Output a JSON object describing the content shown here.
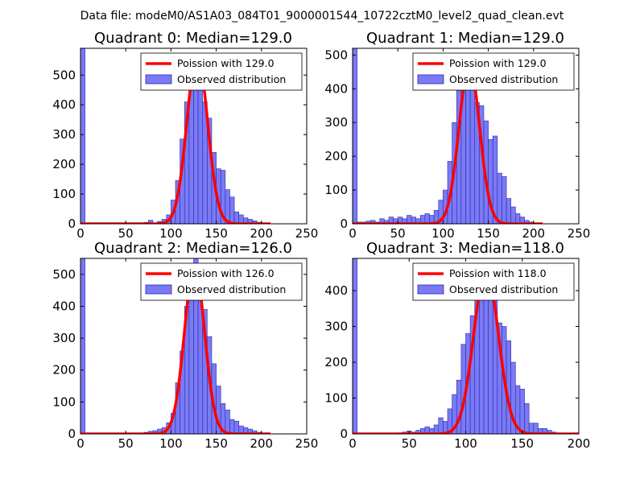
{
  "figure": {
    "suptitle": "Data file: modeM0/AS1A03_084T01_9000001544_10722cztM0_level2_quad_clean.evt"
  },
  "colors": {
    "hist_fill": "#7a7af5",
    "hist_edge": "#2a2ab0",
    "poisson_line": "#ff0000"
  },
  "chart_data": [
    {
      "type": "histogram",
      "title": "Quadrant 0: Median=129.0",
      "median": 129.0,
      "xlim": [
        0,
        250
      ],
      "ylim": [
        0,
        590
      ],
      "xticks": [
        0,
        50,
        100,
        150,
        200,
        250
      ],
      "yticks": [
        0,
        100,
        200,
        300,
        400,
        500
      ],
      "bin_width": 5,
      "bins": [
        [
          0,
          590
        ],
        [
          70,
          5
        ],
        [
          75,
          12
        ],
        [
          85,
          8
        ],
        [
          90,
          15
        ],
        [
          95,
          30
        ],
        [
          100,
          80
        ],
        [
          105,
          145
        ],
        [
          110,
          285
        ],
        [
          115,
          410
        ],
        [
          120,
          460
        ],
        [
          125,
          570
        ],
        [
          130,
          505
        ],
        [
          135,
          410
        ],
        [
          140,
          355
        ],
        [
          145,
          240
        ],
        [
          150,
          185
        ],
        [
          155,
          180
        ],
        [
          160,
          115
        ],
        [
          165,
          90
        ],
        [
          170,
          40
        ],
        [
          175,
          30
        ],
        [
          180,
          20
        ],
        [
          185,
          15
        ],
        [
          190,
          10
        ],
        [
          195,
          5
        ]
      ],
      "poisson_label": "Poission with 129.0",
      "observed_label": "Observed distribution",
      "poisson": {
        "mean": 129.0,
        "peak": 570,
        "sigma": 11.4
      }
    },
    {
      "type": "histogram",
      "title": "Quadrant 1: Median=129.0",
      "median": 129.0,
      "xlim": [
        0,
        250
      ],
      "ylim": [
        0,
        520
      ],
      "xticks": [
        0,
        50,
        100,
        150,
        200,
        250
      ],
      "yticks": [
        0,
        100,
        200,
        300,
        400,
        500
      ],
      "bin_width": 5,
      "bins": [
        [
          0,
          520
        ],
        [
          5,
          5
        ],
        [
          10,
          5
        ],
        [
          15,
          8
        ],
        [
          20,
          10
        ],
        [
          25,
          5
        ],
        [
          30,
          15
        ],
        [
          35,
          10
        ],
        [
          40,
          20
        ],
        [
          45,
          15
        ],
        [
          50,
          20
        ],
        [
          55,
          15
        ],
        [
          60,
          25
        ],
        [
          65,
          20
        ],
        [
          70,
          15
        ],
        [
          75,
          25
        ],
        [
          80,
          30
        ],
        [
          85,
          25
        ],
        [
          90,
          40
        ],
        [
          95,
          70
        ],
        [
          100,
          100
        ],
        [
          105,
          185
        ],
        [
          110,
          300
        ],
        [
          115,
          395
        ],
        [
          120,
          450
        ],
        [
          125,
          470
        ],
        [
          130,
          500
        ],
        [
          135,
          360
        ],
        [
          140,
          350
        ],
        [
          145,
          305
        ],
        [
          150,
          250
        ],
        [
          155,
          260
        ],
        [
          160,
          150
        ],
        [
          165,
          140
        ],
        [
          170,
          75
        ],
        [
          175,
          50
        ],
        [
          180,
          30
        ],
        [
          185,
          20
        ],
        [
          190,
          10
        ],
        [
          195,
          5
        ]
      ],
      "poisson_label": "Poission with 129.0",
      "observed_label": "Observed distribution",
      "poisson": {
        "mean": 129.0,
        "peak": 472,
        "sigma": 11.4
      }
    },
    {
      "type": "histogram",
      "title": "Quadrant 2: Median=126.0",
      "median": 126.0,
      "xlim": [
        0,
        250
      ],
      "ylim": [
        0,
        550
      ],
      "xticks": [
        0,
        50,
        100,
        150,
        200,
        250
      ],
      "yticks": [
        0,
        100,
        200,
        300,
        400,
        500
      ],
      "bin_width": 5,
      "bins": [
        [
          0,
          550
        ],
        [
          70,
          5
        ],
        [
          75,
          8
        ],
        [
          80,
          10
        ],
        [
          85,
          15
        ],
        [
          90,
          20
        ],
        [
          95,
          35
        ],
        [
          100,
          65
        ],
        [
          105,
          160
        ],
        [
          110,
          260
        ],
        [
          115,
          400
        ],
        [
          120,
          455
        ],
        [
          125,
          550
        ],
        [
          130,
          470
        ],
        [
          135,
          390
        ],
        [
          140,
          305
        ],
        [
          145,
          220
        ],
        [
          150,
          150
        ],
        [
          155,
          95
        ],
        [
          160,
          75
        ],
        [
          165,
          45
        ],
        [
          170,
          40
        ],
        [
          175,
          25
        ],
        [
          180,
          20
        ],
        [
          185,
          15
        ],
        [
          190,
          10
        ],
        [
          195,
          5
        ],
        [
          200,
          3
        ]
      ],
      "poisson_label": "Poission with 126.0",
      "observed_label": "Observed distribution",
      "poisson": {
        "mean": 126.0,
        "peak": 525,
        "sigma": 11.2
      }
    },
    {
      "type": "histogram",
      "title": "Quadrant 3: Median=118.0",
      "median": 118.0,
      "xlim": [
        0,
        200
      ],
      "ylim": [
        0,
        490
      ],
      "xticks": [
        0,
        50,
        100,
        150,
        200
      ],
      "yticks": [
        0,
        100,
        200,
        300,
        400
      ],
      "bin_width": 4,
      "bins": [
        [
          0,
          490
        ],
        [
          40,
          3
        ],
        [
          44,
          5
        ],
        [
          48,
          8
        ],
        [
          52,
          5
        ],
        [
          56,
          10
        ],
        [
          60,
          15
        ],
        [
          64,
          20
        ],
        [
          68,
          15
        ],
        [
          72,
          25
        ],
        [
          76,
          45
        ],
        [
          80,
          35
        ],
        [
          84,
          70
        ],
        [
          88,
          110
        ],
        [
          92,
          150
        ],
        [
          96,
          250
        ],
        [
          100,
          280
        ],
        [
          104,
          330
        ],
        [
          108,
          380
        ],
        [
          112,
          445
        ],
        [
          116,
          455
        ],
        [
          120,
          430
        ],
        [
          124,
          380
        ],
        [
          128,
          310
        ],
        [
          132,
          300
        ],
        [
          136,
          260
        ],
        [
          140,
          200
        ],
        [
          144,
          135
        ],
        [
          148,
          125
        ],
        [
          152,
          85
        ],
        [
          156,
          30
        ],
        [
          160,
          30
        ],
        [
          164,
          15
        ],
        [
          168,
          15
        ],
        [
          172,
          10
        ],
        [
          176,
          5
        ]
      ],
      "poisson_label": "Poission with 118.0",
      "observed_label": "Observed distribution",
      "poisson": {
        "mean": 118.0,
        "peak": 460,
        "sigma": 10.9
      }
    }
  ]
}
